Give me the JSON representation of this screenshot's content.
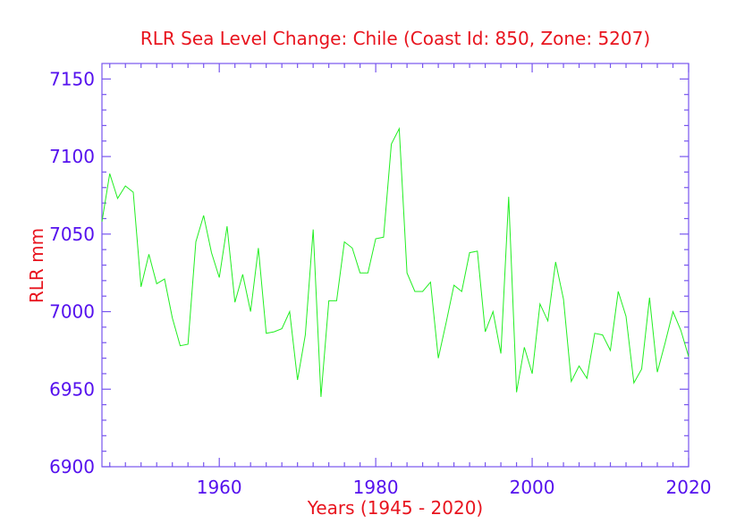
{
  "chart_data": {
    "type": "line",
    "title": "RLR Sea Level Change: Chile (Coast Id: 850, Zone: 5207)",
    "xlabel": "Years (1945 - 2020)",
    "ylabel": "RLR mm",
    "xlim": [
      1945,
      2020
    ],
    "ylim": [
      6900,
      7160
    ],
    "x_ticks": [
      1960,
      1980,
      2000,
      2020
    ],
    "x_tick_labels": [
      "1960",
      "1980",
      "2000",
      "2020"
    ],
    "y_ticks": [
      6900,
      6950,
      7000,
      7050,
      7100,
      7150
    ],
    "y_tick_labels": [
      "6900",
      "6950",
      "7000",
      "7050",
      "7100",
      "7150"
    ],
    "x_minor_step": 2,
    "y_minor_step": 10,
    "colors": {
      "title": "#e8141e",
      "axis_label": "#e8141e",
      "tick_label": "#5511ee",
      "frame": "#7755ee",
      "series": "#22ee22"
    },
    "series": [
      {
        "name": "RLR mm",
        "x": [
          1945,
          1946,
          1947,
          1948,
          1949,
          1950,
          1951,
          1952,
          1953,
          1954,
          1955,
          1956,
          1957,
          1958,
          1959,
          1960,
          1961,
          1962,
          1963,
          1964,
          1965,
          1966,
          1967,
          1968,
          1969,
          1970,
          1971,
          1972,
          1973,
          1974,
          1975,
          1976,
          1977,
          1978,
          1979,
          1980,
          1981,
          1982,
          1983,
          1984,
          1985,
          1986,
          1987,
          1988,
          1989,
          1990,
          1991,
          1992,
          1993,
          1994,
          1995,
          1996,
          1997,
          1998,
          1999,
          2000,
          2001,
          2002,
          2003,
          2004,
          2005,
          2006,
          2007,
          2008,
          2009,
          2010,
          2011,
          2012,
          2013,
          2014,
          2015,
          2016,
          2017,
          2018,
          2019,
          2020
        ],
        "values": [
          7058,
          7089,
          7073,
          7081,
          7077,
          7016,
          7037,
          7018,
          7021,
          6996,
          6978,
          6979,
          7045,
          7062,
          7038,
          7022,
          7055,
          7006,
          7024,
          7000,
          7041,
          6986,
          6987,
          6989,
          7000,
          6956,
          6985,
          7053,
          6945,
          7007,
          7007,
          7045,
          7041,
          7025,
          7025,
          7047,
          7048,
          7108,
          7118,
          7025,
          7013,
          7013,
          7019,
          6970,
          6993,
          7017,
          7013,
          7038,
          7039,
          6987,
          7000,
          6973,
          7074,
          6948,
          6977,
          6960,
          7005,
          6994,
          7032,
          7008,
          6955,
          6965,
          6957,
          6986,
          6985,
          6975,
          7013,
          6997,
          6954,
          6963,
          7009,
          6961,
          6980,
          7000,
          6988,
          6971
        ]
      }
    ]
  }
}
